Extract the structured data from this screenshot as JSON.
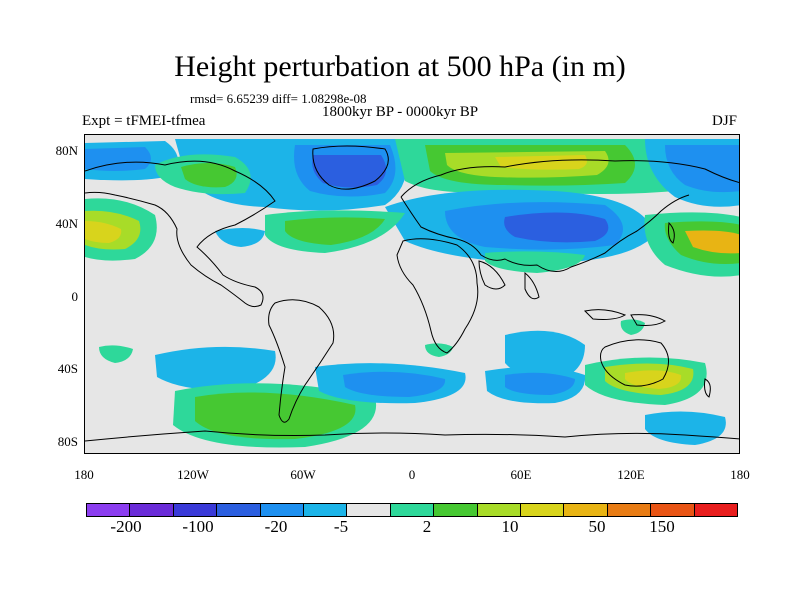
{
  "title": "Height perturbation at 500 hPa (in m)",
  "stats": "rmsd= 6.65239 diff= 1.08298e-08",
  "experiment": "Expt = tFMEI-tfmea",
  "period": "1800kyr BP - 0000kyr BP",
  "season": "DJF",
  "map": {
    "lat_ticks": [
      "80N",
      "40N",
      "0",
      "40S",
      "80S"
    ],
    "lon_ticks": [
      "180",
      "120W",
      "60W",
      "0",
      "60E",
      "120E",
      "180"
    ],
    "background_color": "#e6e6e6",
    "coastline_color": "#000000"
  },
  "colorbar": {
    "colors": [
      "#8c3ef0",
      "#6a2bd8",
      "#3a3ad8",
      "#2b5fe0",
      "#1e90f0",
      "#1cb4e8",
      "#e6e6e6",
      "#2ed89a",
      "#46c832",
      "#a8dc28",
      "#d8d41c",
      "#e8b414",
      "#e87c14",
      "#e85414",
      "#e81e1e"
    ],
    "labels": [
      "-200",
      "-100",
      "-20",
      "-5",
      "2",
      "10",
      "50",
      "150"
    ]
  }
}
